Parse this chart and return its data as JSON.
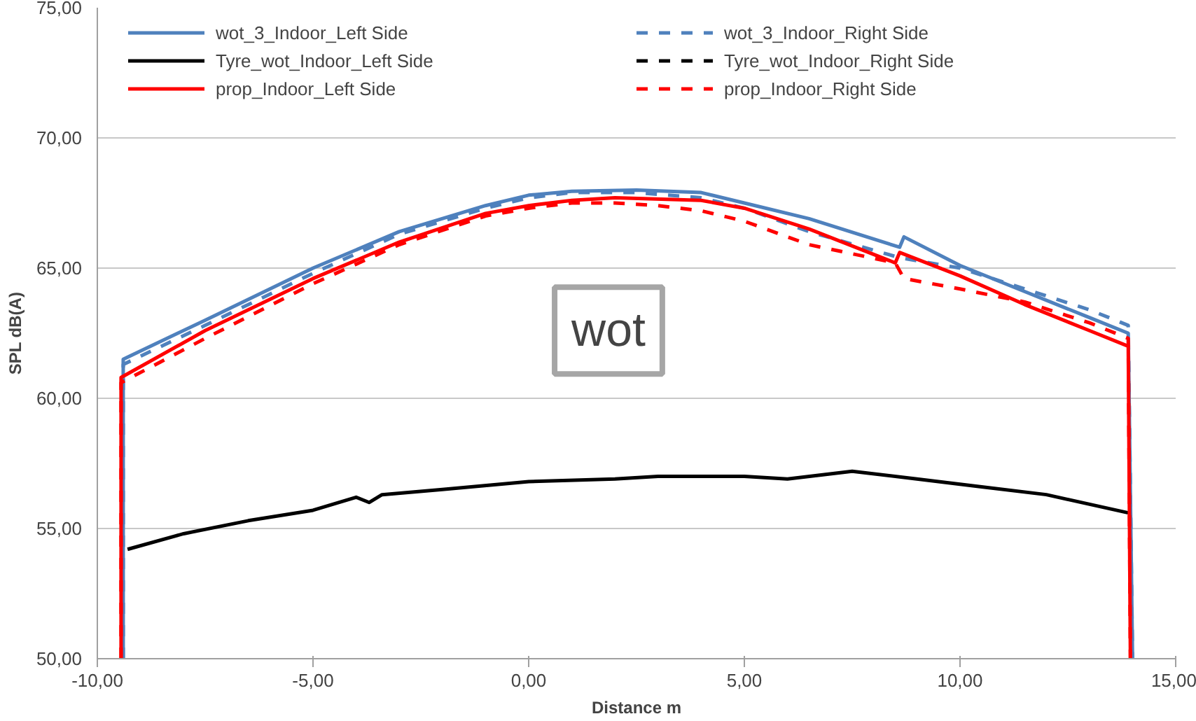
{
  "chart_data": {
    "type": "line",
    "xlabel": "Distance m",
    "ylabel": "SPL dB(A)",
    "xlim": [
      -10,
      15
    ],
    "ylim": [
      50,
      75
    ],
    "xticks": [
      {
        "value": -10,
        "label": "-10,00"
      },
      {
        "value": -5,
        "label": "-5,00"
      },
      {
        "value": 0,
        "label": "0,00"
      },
      {
        "value": 5,
        "label": "5,00"
      },
      {
        "value": 10,
        "label": "10,00"
      },
      {
        "value": 15,
        "label": "15,00"
      }
    ],
    "yticks": [
      {
        "value": 50,
        "label": "50,00"
      },
      {
        "value": 55,
        "label": "55,00"
      },
      {
        "value": 60,
        "label": "60,00"
      },
      {
        "value": 65,
        "label": "65,00"
      },
      {
        "value": 70,
        "label": "70,00"
      },
      {
        "value": 75,
        "label": "75,00"
      }
    ],
    "grid": "y",
    "legend": "top",
    "marker": "none",
    "annotations": [
      "wot"
    ],
    "series": [
      {
        "name": "wot_3_Indoor_Left Side",
        "color": "#4f81bd",
        "line_style": "solid",
        "x": [
          -9.4,
          -9.4,
          -7.5,
          -5,
          -3,
          -1,
          0,
          1,
          2.5,
          4,
          5,
          6.5,
          8.6,
          8.7,
          10,
          11.5,
          13,
          13.9,
          14.0
        ],
        "values": [
          50,
          61.5,
          63.0,
          65.0,
          66.4,
          67.4,
          67.8,
          67.95,
          68.0,
          67.9,
          67.5,
          66.9,
          65.8,
          66.2,
          65.1,
          64.1,
          63.1,
          62.5,
          50
        ]
      },
      {
        "name": "wot_3_Indoor_Right Side",
        "color": "#4f81bd",
        "line_style": "dashed",
        "x": [
          -9.4,
          -9.4,
          -7.5,
          -5,
          -3,
          -1,
          0,
          1,
          2.5,
          4,
          5,
          6.5,
          8.6,
          10,
          11.5,
          13,
          13.9,
          14.0
        ],
        "values": [
          50,
          61.3,
          62.8,
          64.8,
          66.3,
          67.3,
          67.7,
          67.9,
          67.9,
          67.7,
          67.3,
          66.4,
          65.4,
          65.0,
          64.2,
          63.4,
          62.8,
          50
        ]
      },
      {
        "name": "Tyre_wot_Indoor_Left Side",
        "color": "#000000",
        "line_style": "solid",
        "x": [
          -9.3,
          -8,
          -6.5,
          -5,
          -4,
          -3.7,
          -3.4,
          -2,
          0,
          2,
          3,
          5,
          6,
          7.5,
          9,
          10.5,
          12,
          13.9
        ],
        "values": [
          54.2,
          54.8,
          55.3,
          55.7,
          56.2,
          56.0,
          56.3,
          56.5,
          56.8,
          56.9,
          57.0,
          57.0,
          56.9,
          57.2,
          56.9,
          56.6,
          56.3,
          55.6
        ]
      },
      {
        "name": "Tyre_wot_Indoor_Right Side",
        "color": "#000000",
        "line_style": "dashed"
      },
      {
        "name": "prop_Indoor_Left Side",
        "color": "#ff0000",
        "line_style": "solid",
        "x": [
          -9.45,
          -9.45,
          -7.5,
          -5,
          -3,
          -1,
          0,
          1,
          2,
          4,
          5,
          6.5,
          8.5,
          8.6,
          10,
          11.5,
          13,
          13.9,
          13.95
        ],
        "values": [
          50,
          60.8,
          62.6,
          64.6,
          66.0,
          67.1,
          67.4,
          67.6,
          67.7,
          67.6,
          67.3,
          66.5,
          65.2,
          65.6,
          64.7,
          63.6,
          62.6,
          62.0,
          50
        ]
      },
      {
        "name": "prop_Indoor_Right Side",
        "color": "#ff0000",
        "line_style": "dashed",
        "x": [
          -9.45,
          -9.45,
          -7.5,
          -5,
          -3,
          -1,
          0,
          1,
          2,
          3,
          4,
          5,
          6.5,
          8.5,
          8.7,
          10,
          11.5,
          13,
          13.9,
          13.95
        ],
        "values": [
          50,
          60.6,
          62.3,
          64.4,
          65.9,
          67.0,
          67.3,
          67.5,
          67.5,
          67.4,
          67.2,
          66.8,
          65.9,
          65.2,
          64.6,
          64.2,
          63.7,
          62.9,
          62.3,
          50
        ]
      }
    ]
  }
}
